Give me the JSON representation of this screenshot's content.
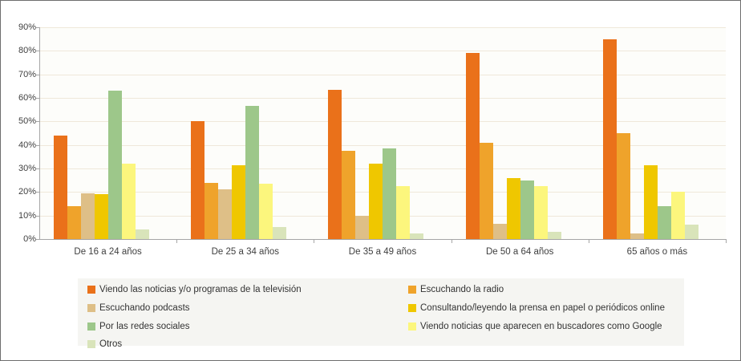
{
  "chart_data": {
    "type": "bar",
    "title": "",
    "xlabel": "",
    "ylabel": "",
    "ylim": [
      0,
      90
    ],
    "ytick_step": 10,
    "ytick_suffix": "%",
    "grid": true,
    "legend_position": "bottom",
    "categories": [
      "De 16 a 24 años",
      "De 25 a 34 años",
      "De 35 a 49 años",
      "De 50 a 64 años",
      "65 años o más"
    ],
    "series": [
      {
        "name": "Viendo las noticias y/o programas de la televisión",
        "color": "#ea711a",
        "values": [
          44,
          50,
          63.5,
          79,
          85
        ]
      },
      {
        "name": "Escuchando la radio",
        "color": "#efa32b",
        "values": [
          14,
          24,
          37.5,
          41,
          45
        ]
      },
      {
        "name": "Escuchando podcasts",
        "color": "#debf87",
        "values": [
          19.5,
          21,
          10,
          6.5,
          2.5
        ]
      },
      {
        "name": "Consultando/leyendo la prensa en papel o periódicos online",
        "color": "#efc700",
        "values": [
          19,
          31.5,
          32,
          26,
          31.5
        ]
      },
      {
        "name": "Por las redes sociales",
        "color": "#9dc78a",
        "values": [
          63,
          56.5,
          38.5,
          25,
          14
        ]
      },
      {
        "name": "Viendo noticias que aparecen en buscadores como Google",
        "color": "#fcf67d",
        "values": [
          32,
          23.5,
          22.5,
          22.5,
          20
        ]
      },
      {
        "name": "Otros",
        "color": "#d9e4ba",
        "values": [
          4,
          5,
          2.5,
          3,
          6
        ]
      }
    ],
    "colors_meta": {
      "gridline": "#efe8da",
      "axis": "#a6a6a6",
      "text": "#3f3f3f",
      "legend_background": "#f5f5f2"
    }
  }
}
